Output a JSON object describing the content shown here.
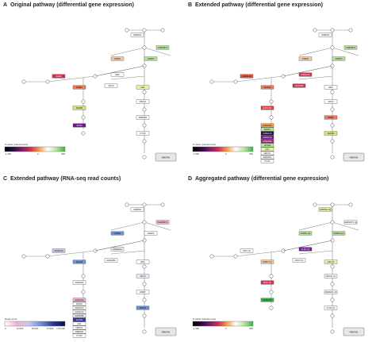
{
  "panels": [
    {
      "id": "A",
      "letter": "A",
      "title": "Original pathway (differential gene expression)",
      "legend": {
        "type": "pvalue",
        "title": "P-value (transformed)",
        "ticks": [
          "-1,000",
          "0",
          "800"
        ],
        "stops": [
          "#000000",
          "#2b0a3d",
          "#7b1a6b",
          "#d2304e",
          "#f6a04a",
          "#ffffff",
          "#b6e39a",
          "#3bb24a"
        ]
      },
      "alanine_label": "Alanine",
      "metabolites": {
        "carnosine": "Carnosine",
        "histidine": "Histidine",
        "imidazole_acetate": "4-Imidazolone-acetate",
        "imidazole_acetaldehyde": "Imidazole acetaldehyde",
        "methylhistamine": "N-Methylhistamine",
        "methylimidazole": "Methylimidazole acetaldehyde",
        "methylimidazole_acetate": "Methylimidazole acetate",
        "urocanate": "Urocanate",
        "imidazolone_propanoate": "4-Imidazolone-5-propanoate",
        "formimino_glutamate": "N-Formimino-L-glutamate",
        "glutamate": "Glutamate",
        "anserine": "Anserine",
        "methylhistidine": "3-Methylhistidine"
      },
      "gene_boxes": [
        {
          "label": "CARNS1",
          "color": "#ffffff"
        },
        {
          "label": "CARNMT1",
          "color": "#b6e39a"
        },
        {
          "label": "CNDP1",
          "color": "#f2c9a2"
        },
        {
          "label": "CNDP2",
          "color": "#b6e39a"
        },
        {
          "label": "HDC",
          "color": "#ffffff"
        },
        {
          "label": "ALDH",
          "color": "#d2304e"
        },
        {
          "label": "AOC3",
          "color": "#ffffff"
        },
        {
          "label": "HNMT",
          "color": "#f07a5a"
        },
        {
          "label": "MAOB",
          "color": "#d8e27a"
        },
        {
          "label": "ALDH",
          "color": "#6a1a8a"
        },
        {
          "label": "HAL",
          "color": "#e5f3a4"
        },
        {
          "label": "UROC1",
          "color": "#ffffff"
        },
        {
          "label": "AMDHD1",
          "color": "#ffffff"
        },
        {
          "label": "FTCD",
          "color": "#ffffff"
        }
      ]
    },
    {
      "id": "B",
      "letter": "B",
      "title": "Extended pathway (differential gene expression)",
      "legend": {
        "type": "pvalue",
        "title": "P-value (transformed)",
        "ticks": [
          "-1,000",
          "0",
          "800"
        ],
        "stops": [
          "#000000",
          "#2b0a3d",
          "#7b1a6b",
          "#d2304e",
          "#f6a04a",
          "#ffffff",
          "#b6e39a",
          "#3bb24a"
        ]
      },
      "alanine_label": "Alanine",
      "gene_boxes": [
        {
          "label": "CARNS1",
          "color": "#ffffff"
        },
        {
          "label": "CARNMT1",
          "color": "#b6e39a"
        },
        {
          "label": "CNDP1",
          "color": "#f2c9a2"
        },
        {
          "label": "CNDP2",
          "color": "#b6e39a"
        },
        {
          "label": "ALDH1A1",
          "color": "#d2304e"
        },
        {
          "label": "ALDH1A2",
          "color": "#e05a45"
        },
        {
          "label": "ALDH1B1",
          "color": "#c83046"
        },
        {
          "label": "ALDH2",
          "color": "#f07a5a"
        },
        {
          "label": "ALDH3A1",
          "color": "#e03a3a"
        },
        {
          "label": "ALDH3A2",
          "color": "#f6a04a"
        },
        {
          "label": "HDC",
          "color": "#ffffff"
        },
        {
          "label": "AOC3",
          "color": "#ffffff"
        },
        {
          "label": "HNMT",
          "color": "#f07a5a"
        },
        {
          "label": "MAOB",
          "color": "#d8e27a"
        },
        {
          "label": "MAOA",
          "color": "#b6e39a"
        },
        {
          "label": "ALDH1A1",
          "color": "#2b0a3d"
        },
        {
          "label": "ALDH1A2",
          "color": "#6a1a8a"
        },
        {
          "label": "ALDH1B1",
          "color": "#9a2a6a"
        },
        {
          "label": "ALDH2",
          "color": "#b6e39a"
        },
        {
          "label": "HAL",
          "color": "#e5f3a4"
        },
        {
          "label": "UROC1",
          "color": "#ffffff"
        },
        {
          "label": "AMDHD1",
          "color": "#ffffff"
        },
        {
          "label": "FTCD",
          "color": "#ffffff"
        }
      ]
    },
    {
      "id": "C",
      "letter": "C",
      "title": "Extended pathway (RNA-seq read counts)",
      "legend": {
        "type": "counts",
        "title": "Read count",
        "ticks": [
          "0",
          "12,500",
          "25,000",
          "37,500",
          "≥ 50,000"
        ],
        "stops": [
          "#ffffff",
          "#f3b0d6",
          "#c8c8f0",
          "#7090d8",
          "#2b3a9a",
          "#0a0a50"
        ]
      },
      "alanine_label": "Alanine",
      "gene_boxes": [
        {
          "label": "CARNS1",
          "color": "#ffffff"
        },
        {
          "label": "CARNMT1",
          "color": "#f3b0d6"
        },
        {
          "label": "CNDP1",
          "color": "#7090d8"
        },
        {
          "label": "CNDP2",
          "color": "#ffffff"
        },
        {
          "label": "ALDH1A1",
          "color": "#e8ecf8"
        },
        {
          "label": "ALDH1A2",
          "color": "#c8c8f0"
        },
        {
          "label": "ALDH1B1",
          "color": "#ffffff"
        },
        {
          "label": "ALDH2",
          "color": "#7090d8"
        },
        {
          "label": "ALDH3A1",
          "color": "#ffffff"
        },
        {
          "label": "ALDH3A2",
          "color": "#f3b0d6"
        },
        {
          "label": "HDC",
          "color": "#ffffff"
        },
        {
          "label": "AOC3",
          "color": "#e8ecf8"
        },
        {
          "label": "HNMT",
          "color": "#ffffff"
        },
        {
          "label": "MAOB",
          "color": "#7090d8"
        },
        {
          "label": "MAOA",
          "color": "#ffffff"
        },
        {
          "label": "ALDH1A1",
          "color": "#ffffff"
        },
        {
          "label": "ALDH1A2",
          "color": "#ffffff"
        },
        {
          "label": "ALDH1B1",
          "color": "#e8ecf8"
        },
        {
          "label": "ALDH2",
          "color": "#2b3a9a"
        },
        {
          "label": "HAL",
          "color": "#ffffff"
        },
        {
          "label": "UROC1",
          "color": "#ffffff"
        },
        {
          "label": "AMDHD1",
          "color": "#ffffff"
        },
        {
          "label": "FTCD",
          "color": "#ffffff"
        }
      ]
    },
    {
      "id": "D",
      "letter": "D",
      "title": "Aggregated pathway (differential gene expression)",
      "legend": {
        "type": "pvalue",
        "title": "P-value (transformed)",
        "ticks": [
          "-1,000",
          "0",
          "800"
        ],
        "stops": [
          "#000000",
          "#2b0a3d",
          "#7b1a6b",
          "#d2304e",
          "#f6a04a",
          "#ffffff",
          "#b6e39a",
          "#3bb24a"
        ]
      },
      "alanine_label": "Alanine",
      "gene_boxes": [
        {
          "label": "CARNS1 (2)",
          "color": "#e5f3a4"
        },
        {
          "label": "CARNMT1 (2)",
          "color": "#ffffff"
        },
        {
          "label": "CNDP1 (2)",
          "color": "#b6e39a"
        },
        {
          "label": "CNDP2 (2)",
          "color": "#b6e39a"
        },
        {
          "label": "ALDH (6)",
          "color": "#6a1a8a"
        },
        {
          "label": "HDC (2)",
          "color": "#ffffff"
        },
        {
          "label": "AOC3 (2)",
          "color": "#ffffff"
        },
        {
          "label": "HNMT (2)",
          "color": "#f2c9a2"
        },
        {
          "label": "MAO (2)",
          "color": "#d2304e"
        },
        {
          "label": "ALDH (4)",
          "color": "#3bb24a"
        },
        {
          "label": "HAL (2)",
          "color": "#e5f3a4"
        },
        {
          "label": "UROC1 (2)",
          "color": "#ffffff"
        },
        {
          "label": "AMDHD1 (2)",
          "color": "#ffffff"
        },
        {
          "label": "FTCD (2)",
          "color": "#ffffff"
        }
      ]
    }
  ]
}
